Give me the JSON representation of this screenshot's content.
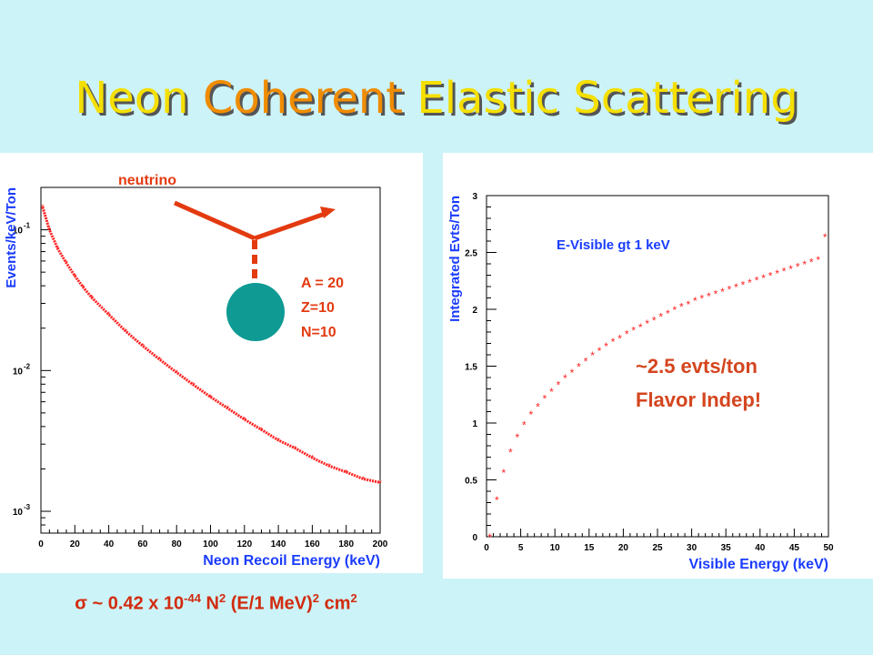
{
  "title": {
    "words": [
      {
        "text": "Neon",
        "color": "#f4df00"
      },
      {
        "text": "Coherent",
        "color": "#f08c00"
      },
      {
        "text": "Elastic Scattering",
        "color": "#f4df00"
      }
    ]
  },
  "left_chart": {
    "diagram": {
      "particle_label": "neutrino",
      "nucleus_labels": [
        "A = 20",
        "Z=10",
        "N=10"
      ],
      "arrow_color": "#e33a10",
      "nucleus_color": "#0f9a94"
    }
  },
  "right_chart": {
    "annotation_lines": [
      "~2.5 evts/ton",
      "Flavor Indep!"
    ],
    "annotation_color": "#d4451e"
  },
  "formula": {
    "sigma": "σ",
    "part1": " ~ 0.42 x 10",
    "exp1": "-44",
    "part2": " N",
    "exp2": "2",
    "part3": " (E/1 MeV)",
    "exp3": "2",
    "part4": " cm",
    "exp4": "2"
  },
  "chart_data": [
    {
      "type": "scatter",
      "title": "",
      "xlabel": "Neon Recoil Energy (keV)",
      "ylabel": "Events/keV/Ton",
      "xlim": [
        0,
        200
      ],
      "ylim": [
        0.0007,
        0.2
      ],
      "yscale": "log",
      "x_ticks": [
        0,
        20,
        40,
        60,
        80,
        100,
        120,
        140,
        160,
        180,
        200
      ],
      "y_ticks": [
        {
          "value": 0.1,
          "label": "10",
          "exp": "-1"
        },
        {
          "value": 0.01,
          "label": "10",
          "exp": "-2"
        },
        {
          "value": 0.001,
          "label": "10",
          "exp": "-3"
        }
      ],
      "marker_color": "#ff2020",
      "axis_label_color": "#1a3cff",
      "series": [
        {
          "x": [
            1,
            5,
            10,
            15,
            20,
            25,
            30,
            40,
            50,
            60,
            70,
            80,
            90,
            100,
            110,
            120,
            130,
            140,
            150,
            160,
            170,
            180,
            190,
            200
          ],
          "values": [
            0.145,
            0.1,
            0.073,
            0.058,
            0.047,
            0.039,
            0.033,
            0.025,
            0.019,
            0.015,
            0.012,
            0.0097,
            0.0079,
            0.0065,
            0.0054,
            0.0045,
            0.0038,
            0.0032,
            0.0028,
            0.0024,
            0.0021,
            0.0019,
            0.0017,
            0.0016
          ]
        }
      ]
    },
    {
      "type": "scatter",
      "title": "E-Visible gt 1 keV",
      "xlabel": "Visible Energy (keV)",
      "ylabel": "Integrated Evts/Ton",
      "xlim": [
        0,
        50
      ],
      "ylim": [
        0,
        3
      ],
      "x_ticks": [
        0,
        5,
        10,
        15,
        20,
        25,
        30,
        35,
        40,
        45,
        50
      ],
      "y_ticks": [
        0,
        0.5,
        1,
        1.5,
        2,
        2.5,
        3
      ],
      "marker_color": "#ff2020",
      "axis_label_color": "#1a3cff",
      "series": [
        {
          "x": [
            0.5,
            1.5,
            2.5,
            3.5,
            4.5,
            5.5,
            6.5,
            7.5,
            8.5,
            9.5,
            10.5,
            11.5,
            12.5,
            13.5,
            14.5,
            15.5,
            16.5,
            17.5,
            18.5,
            19.5,
            20.5,
            21.5,
            22.5,
            23.5,
            24.5,
            25.5,
            26.5,
            27.5,
            28.5,
            29.5,
            30.5,
            31.5,
            32.5,
            33.5,
            34.5,
            35.5,
            36.5,
            37.5,
            38.5,
            39.5,
            40.5,
            41.5,
            42.5,
            43.5,
            44.5,
            45.5,
            46.5,
            47.5,
            48.5,
            49.5
          ],
          "values": [
            0.0,
            0.33,
            0.57,
            0.75,
            0.88,
            0.99,
            1.08,
            1.15,
            1.22,
            1.28,
            1.34,
            1.4,
            1.45,
            1.5,
            1.55,
            1.6,
            1.64,
            1.68,
            1.72,
            1.75,
            1.79,
            1.82,
            1.85,
            1.88,
            1.91,
            1.94,
            1.97,
            2.0,
            2.03,
            2.05,
            2.08,
            2.1,
            2.12,
            2.14,
            2.16,
            2.18,
            2.2,
            2.22,
            2.24,
            2.26,
            2.28,
            2.3,
            2.32,
            2.34,
            2.36,
            2.38,
            2.4,
            2.42,
            2.44,
            2.64
          ]
        }
      ]
    }
  ]
}
